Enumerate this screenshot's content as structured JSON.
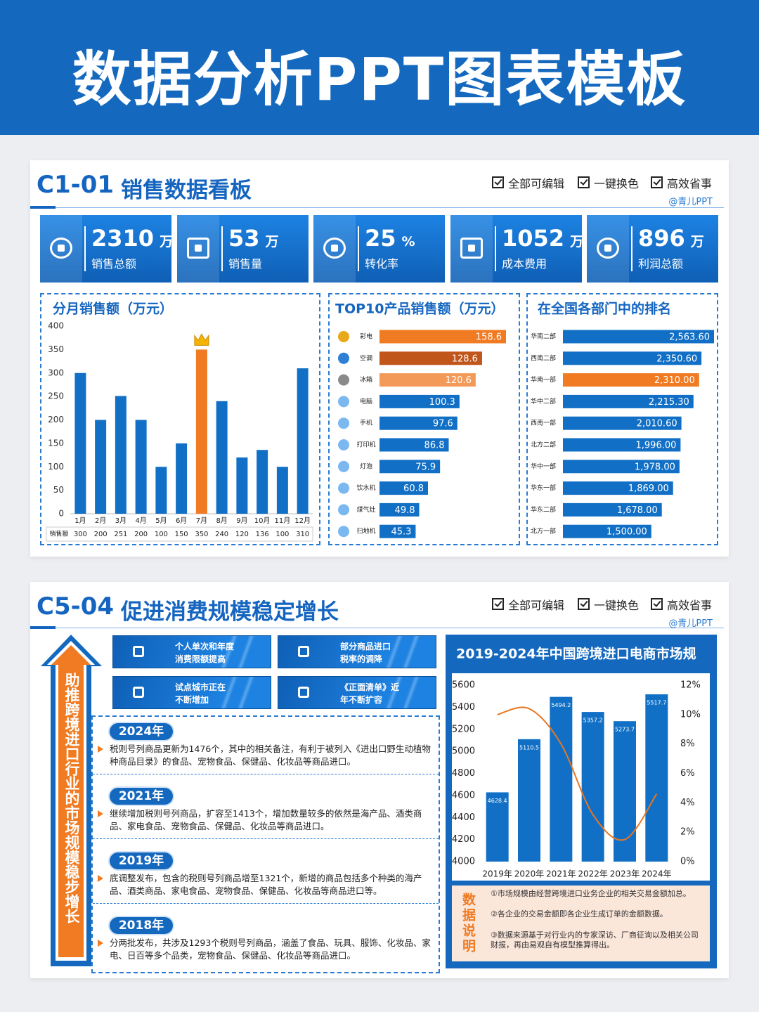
{
  "header": {
    "title": "数据分析PPT图表模板"
  },
  "panel1": {
    "code": "C1-01",
    "title": "销售数据看板",
    "features": [
      "全部可编辑",
      "一键换色",
      "高效省事"
    ],
    "credit": "@青儿PPT",
    "kpis": [
      {
        "value": 2310,
        "unit": "万",
        "label": "销售总额"
      },
      {
        "value": 53,
        "unit": "万",
        "label": "销售量"
      },
      {
        "value": 25,
        "unit": "%",
        "label": "转化率"
      },
      {
        "value": 1052,
        "unit": "万",
        "label": "成本费用"
      },
      {
        "value": 896,
        "unit": "万",
        "label": "利润总额"
      }
    ]
  },
  "chart_data": [
    {
      "type": "bar",
      "title": "分月销售额（万元）",
      "categories": [
        "1月",
        "2月",
        "3月",
        "4月",
        "5月",
        "6月",
        "7月",
        "8月",
        "9月",
        "10月",
        "11月",
        "12月"
      ],
      "values": [
        300,
        200,
        251,
        200,
        100,
        150,
        350,
        240,
        120,
        136,
        100,
        310
      ],
      "colors": [
        "#1170c6",
        "#1170c6",
        "#1170c6",
        "#1170c6",
        "#1170c6",
        "#1170c6",
        "#f07b22",
        "#1170c6",
        "#1170c6",
        "#1170c6",
        "#1170c6",
        "#1170c6"
      ],
      "ylim": [
        0,
        400
      ],
      "yticks": [
        0,
        50,
        100,
        150,
        200,
        250,
        300,
        350,
        400
      ],
      "table_label": "销售额"
    },
    {
      "type": "barh",
      "title": "TOP10产品销售额（万元）",
      "categories": [
        "彩电",
        "空调",
        "冰箱",
        "电脑",
        "手机",
        "打印机",
        "灯泡",
        "饮水机",
        "煤气灶",
        "扫地机"
      ],
      "values": [
        158.6,
        128.6,
        120.6,
        100.3,
        97.6,
        86.8,
        75.9,
        60.8,
        49.8,
        45.3
      ],
      "colors": [
        "#f07b22",
        "#c0561a",
        "#f39a58",
        "#1170c6",
        "#1170c6",
        "#1170c6",
        "#1170c6",
        "#1170c6",
        "#1170c6",
        "#1170c6"
      ]
    },
    {
      "type": "barh",
      "title": "在全国各部门中的排名",
      "categories": [
        "华南二部",
        "西南二部",
        "华南一部",
        "华中二部",
        "西南一部",
        "北方二部",
        "华中一部",
        "华东一部",
        "华东二部",
        "北方一部"
      ],
      "values": [
        2563.6,
        2350.6,
        2310,
        2215.3,
        2010.6,
        1996,
        1978,
        1869,
        1678,
        1500
      ],
      "value_labels": [
        "2,563.60",
        "2,350.60",
        "2,310.00",
        "2,215.30",
        "2,010.60",
        "1,996.00",
        "1,978.00",
        "1,869.00",
        "1,678.00",
        "1,500.00"
      ],
      "colors": [
        "#1170c6",
        "#1170c6",
        "#f07b22",
        "#1170c6",
        "#1170c6",
        "#1170c6",
        "#1170c6",
        "#1170c6",
        "#1170c6",
        "#1170c6"
      ]
    },
    {
      "type": "combo",
      "title": "2019-2024年中国跨境进口电商市场规",
      "categories": [
        "2019年",
        "2020年",
        "2021年",
        "2022年",
        "2023年",
        "2024年"
      ],
      "series": [
        {
          "type": "bar",
          "color": "#1170c6",
          "values": [
            4628.4,
            5110.5,
            5494.2,
            5357.2,
            5273.7,
            5517.7
          ]
        },
        {
          "type": "line",
          "color": "#e87722",
          "axis": "y2",
          "values": [
            10,
            10.4,
            8,
            3.2,
            1.5,
            4.6
          ]
        }
      ],
      "ylim": [
        4000,
        5600
      ],
      "yticks": [
        4000,
        4200,
        4400,
        4600,
        4800,
        5000,
        5200,
        5400,
        5600
      ],
      "y2lim": [
        0,
        12
      ],
      "y2ticks": [
        {
          "value": 0,
          "label": "0%"
        },
        {
          "value": 2,
          "label": "2%"
        },
        {
          "value": 4,
          "label": "4%"
        },
        {
          "value": 6,
          "label": "6%"
        },
        {
          "value": 8,
          "label": "8%"
        },
        {
          "value": 10,
          "label": "10%"
        },
        {
          "value": 12,
          "label": "12%"
        }
      ]
    }
  ],
  "panel2": {
    "code": "C5-04",
    "title": "促进消费规模稳定增长",
    "features": [
      "全部可编辑",
      "一键换色",
      "高效省事"
    ],
    "credit": "@青儿PPT",
    "arrow_text": "助推跨境进口行业的市场规模稳步增长",
    "highlights": [
      [
        "个人单次和年度",
        "消费限额提高"
      ],
      [
        "部分商品进口",
        "税率的调降"
      ],
      [
        "试点城市正在",
        "不断增加"
      ],
      [
        "《正面清单》近",
        "年不断扩容"
      ]
    ],
    "timeline": [
      {
        "year": "2024年",
        "text": "税则号列商品更新为1476个，其中的相关备注，有利于被列入《进出口野生动植物种商品目录》的食品、宠物食品、保健品、化妆品等商品进口。"
      },
      {
        "year": "2021年",
        "text": "继续增加税则号列商品，扩容至1413个，增加数量较多的依然是海产品、酒类商品、家电食品、宠物食品、保健品、化妆品等商品进口。"
      },
      {
        "year": "2019年",
        "text": "底调整发布，包含的税则号列商品增至1321个，新增的商品包括多个种类的海产品、酒类商品、家电食品、宠物食品、保健品、化妆品等商品进口等。"
      },
      {
        "year": "2018年",
        "text": "分两批发布，共涉及1293个税则号列商品，涵盖了食品、玩具、服饰、化妆品、家电、日百等多个品类，宠物食品、保健品、化妆品等商品进口。"
      }
    ],
    "notes_label": "数据说明",
    "notes": [
      "①市场规模由经营跨境进口业务企业的相关交易金额加总。",
      "②各企业的交易金额即各企业生成订单的金额数据。",
      "③数据来源基于对行业内的专家深访、厂商征询以及相关公司财报，再由易观自有模型推算得出。"
    ]
  }
}
